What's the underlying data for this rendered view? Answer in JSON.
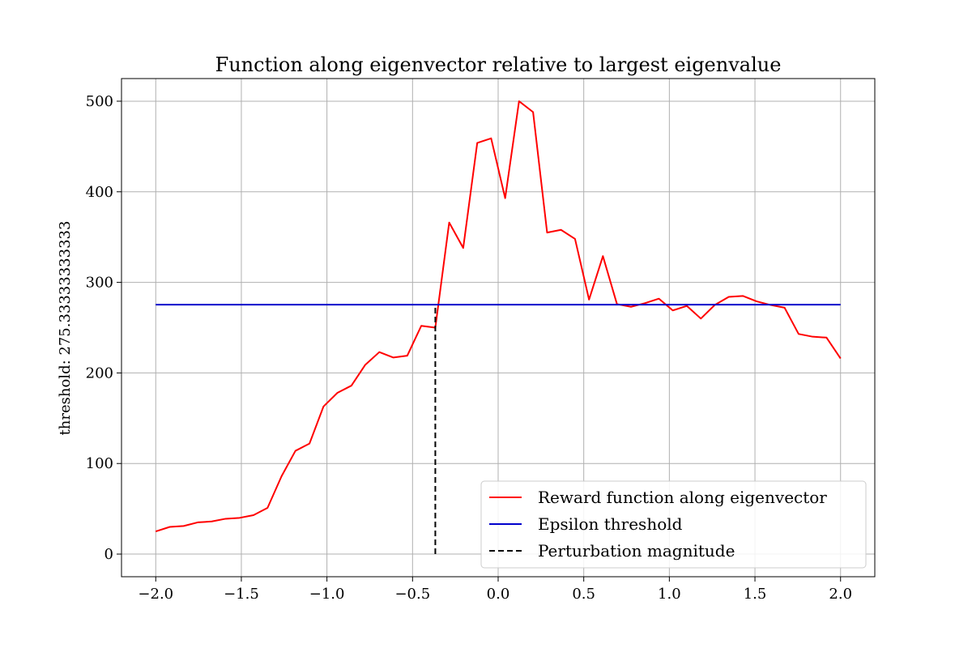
{
  "chart_data": {
    "type": "line",
    "title": "Function along eigenvector relative to largest eigenvalue",
    "xlabel": "",
    "ylabel": "threshold: 275.33333333333",
    "xlim": [
      -2.2,
      2.2
    ],
    "ylim": [
      -25,
      525
    ],
    "xticks": [
      -2.0,
      -1.5,
      -1.0,
      -0.5,
      0.0,
      0.5,
      1.0,
      1.5,
      2.0
    ],
    "xtick_labels": [
      "−2.0",
      "−1.5",
      "−1.0",
      "−0.5",
      "0.0",
      "0.5",
      "1.0",
      "1.5",
      "2.0"
    ],
    "yticks": [
      0,
      100,
      200,
      300,
      400,
      500
    ],
    "ytick_labels": [
      "0",
      "100",
      "200",
      "300",
      "400",
      "500"
    ],
    "grid": true,
    "legend_position": "bottom-right",
    "series": [
      {
        "name": "Reward function along eigenvector",
        "color": "#ff0000",
        "style": "solid",
        "x": [
          -2.0,
          -1.918,
          -1.837,
          -1.755,
          -1.673,
          -1.592,
          -1.51,
          -1.429,
          -1.347,
          -1.265,
          -1.184,
          -1.102,
          -1.02,
          -0.939,
          -0.857,
          -0.776,
          -0.694,
          -0.612,
          -0.531,
          -0.449,
          -0.367,
          -0.286,
          -0.204,
          -0.122,
          -0.041,
          0.041,
          0.122,
          0.204,
          0.286,
          0.367,
          0.449,
          0.531,
          0.612,
          0.694,
          0.776,
          0.857,
          0.939,
          1.02,
          1.102,
          1.184,
          1.265,
          1.347,
          1.429,
          1.51,
          1.592,
          1.673,
          1.755,
          1.837,
          1.918,
          2.0
        ],
        "y": [
          25,
          30,
          31,
          35,
          36,
          39,
          40,
          43,
          51,
          86,
          114,
          122,
          163,
          178,
          186,
          209,
          223,
          217,
          219,
          252,
          250,
          366,
          338,
          454,
          459,
          393,
          500,
          488,
          355,
          358,
          348,
          281,
          329,
          276,
          273,
          277,
          282,
          269,
          274,
          260,
          275,
          284,
          285,
          279,
          275,
          272,
          243,
          240,
          239,
          216
        ]
      },
      {
        "name": "Epsilon threshold",
        "color": "#0000cc",
        "style": "solid",
        "x": [
          -2.0,
          2.0
        ],
        "y": [
          275.33,
          275.33
        ]
      },
      {
        "name": "Perturbation magnitude",
        "color": "#000000",
        "style": "dashed",
        "x": [
          -0.367,
          -0.367
        ],
        "y": [
          0,
          275.33
        ]
      }
    ]
  }
}
